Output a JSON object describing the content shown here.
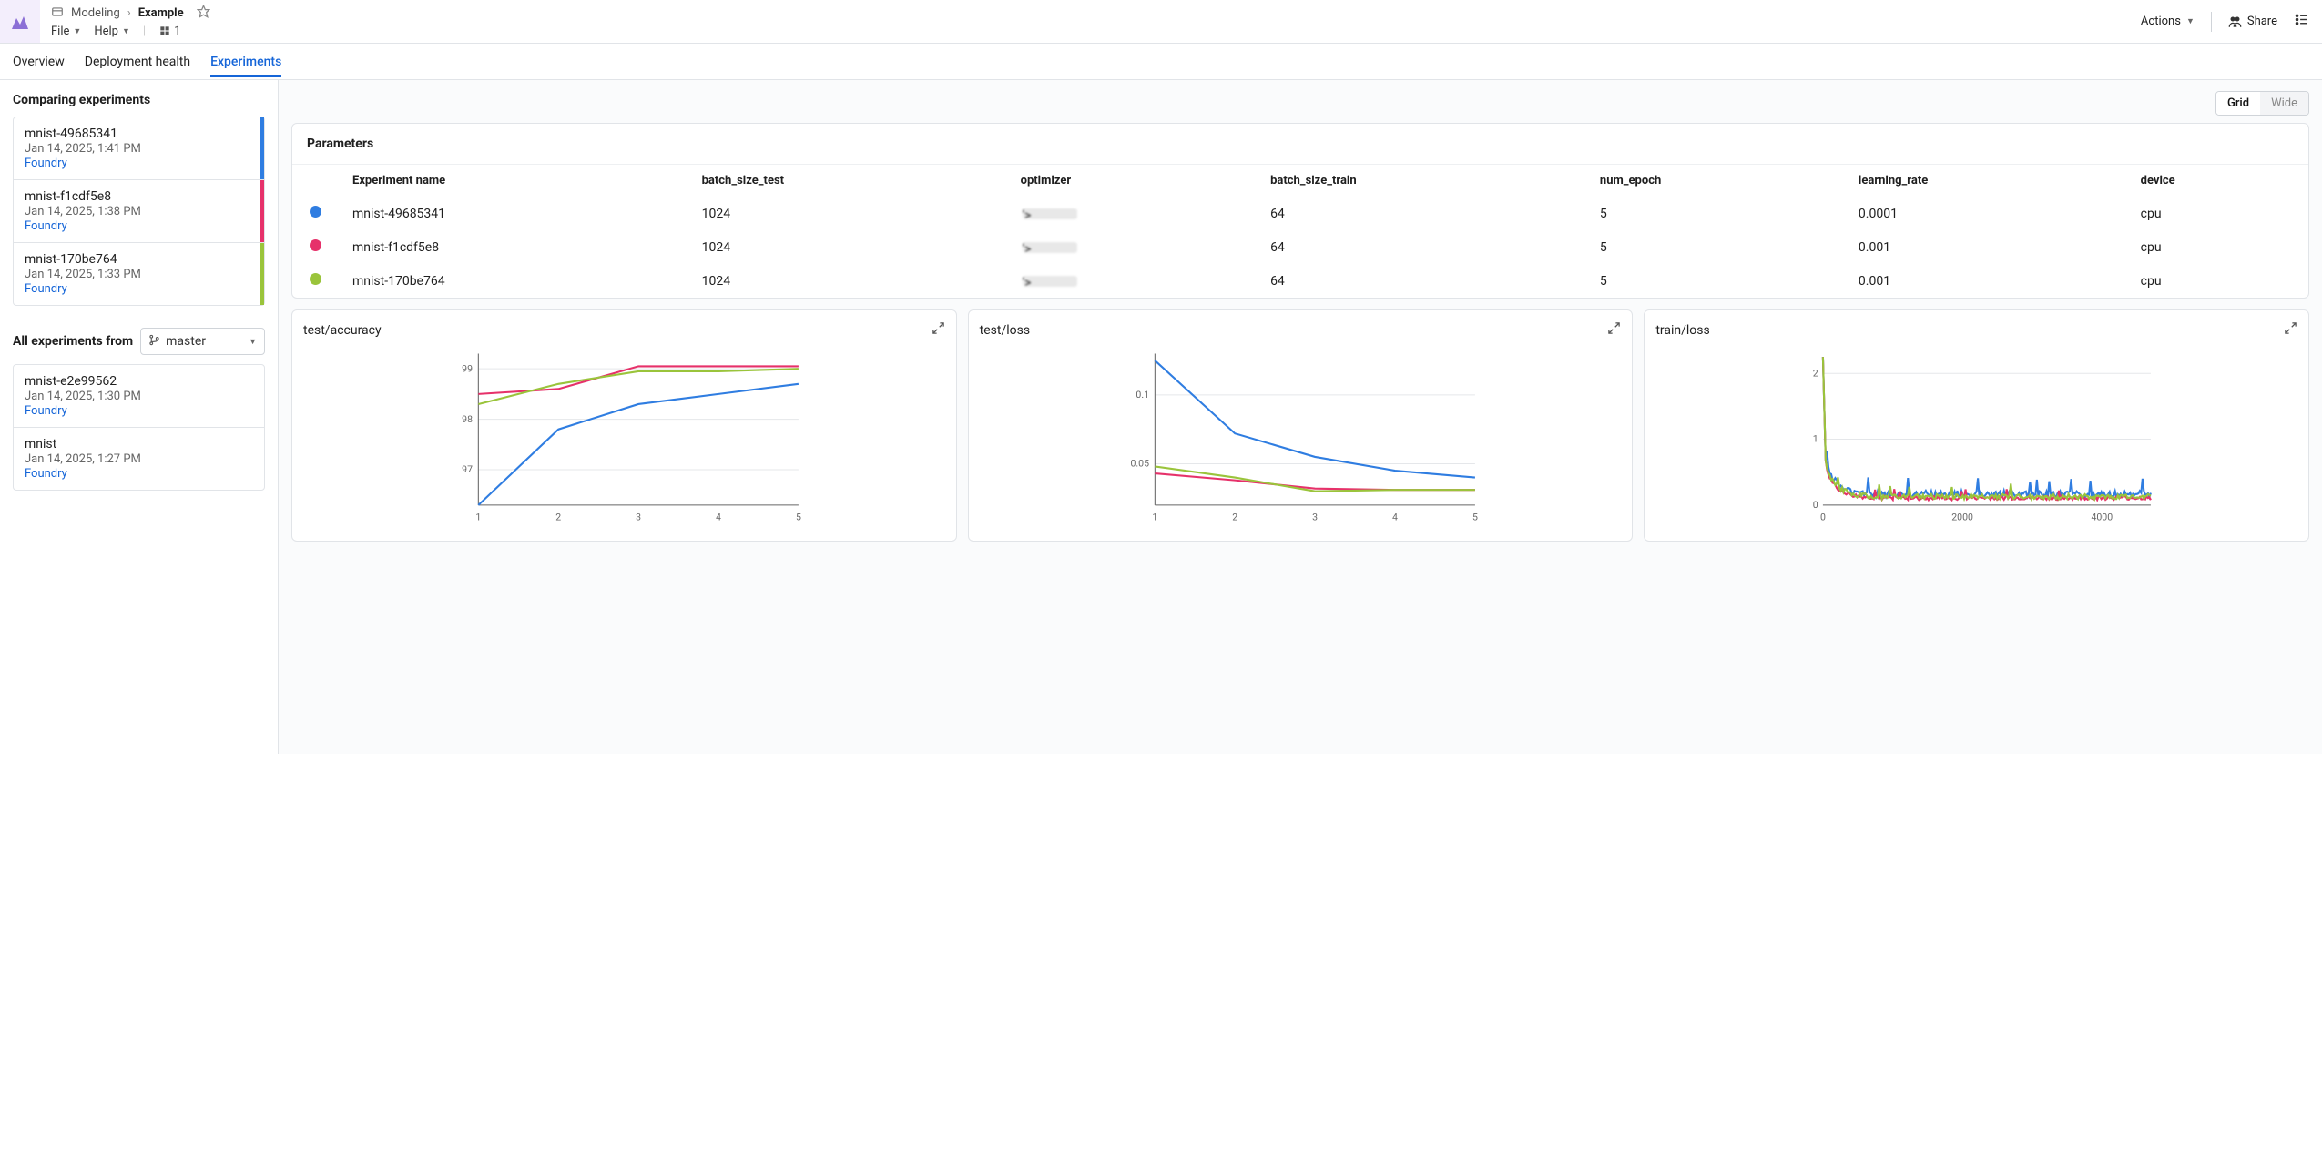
{
  "colors": {
    "blue": "#2f7de1",
    "pink": "#e6316a",
    "green": "#9ac43b",
    "accent": "#1565d8",
    "logo": "#8b6fd6"
  },
  "header": {
    "breadcrumb_parent": "Modeling",
    "breadcrumb_current": "Example",
    "menu_file": "File",
    "menu_help": "Help",
    "user_count": "1",
    "actions_label": "Actions",
    "share_label": "Share"
  },
  "tabs": [
    {
      "id": "overview",
      "label": "Overview",
      "active": false
    },
    {
      "id": "deploy",
      "label": "Deployment health",
      "active": false
    },
    {
      "id": "exp",
      "label": "Experiments",
      "active": true
    }
  ],
  "sidebar": {
    "title": "Comparing experiments",
    "experiments": [
      {
        "name": "mnist-49685341",
        "date": "Jan 14, 2025, 1:41 PM",
        "source": "Foundry",
        "color": "#2f7de1"
      },
      {
        "name": "mnist-f1cdf5e8",
        "date": "Jan 14, 2025, 1:38 PM",
        "source": "Foundry",
        "color": "#e6316a"
      },
      {
        "name": "mnist-170be764",
        "date": "Jan 14, 2025, 1:33 PM",
        "source": "Foundry",
        "color": "#9ac43b"
      }
    ],
    "all_label": "All experiments from",
    "branch": "master",
    "all_experiments": [
      {
        "name": "mnist-e2e99562",
        "date": "Jan 14, 2025, 1:30 PM",
        "source": "Foundry"
      },
      {
        "name": "mnist",
        "date": "Jan 14, 2025, 1:27 PM",
        "source": "Foundry"
      }
    ]
  },
  "view_toggle": {
    "grid": "Grid",
    "wide": "Wide",
    "active": "grid"
  },
  "parameters": {
    "title": "Parameters",
    "columns": [
      "Experiment name",
      "batch_size_test",
      "optimizer",
      "batch_size_train",
      "num_epoch",
      "learning_rate",
      "device"
    ],
    "rows": [
      {
        "color": "#2f7de1",
        "name": "mnist-49685341",
        "batch_size_test": "1024",
        "optimizer_prefix": "<class 'torch.optim.",
        "optimizer_suffix": "'>",
        "batch_size_train": "64",
        "num_epoch": "5",
        "learning_rate": "0.0001",
        "device": "cpu"
      },
      {
        "color": "#e6316a",
        "name": "mnist-f1cdf5e8",
        "batch_size_test": "1024",
        "optimizer_prefix": "<class 'torch.optim.",
        "optimizer_suffix": "'>",
        "batch_size_train": "64",
        "num_epoch": "5",
        "learning_rate": "0.001",
        "device": "cpu"
      },
      {
        "color": "#9ac43b",
        "name": "mnist-170be764",
        "batch_size_test": "1024",
        "optimizer_prefix": "<class 'torch.optim.",
        "optimizer_suffix": "'>",
        "batch_size_train": "64",
        "num_epoch": "5",
        "learning_rate": "0.001",
        "device": "cpu"
      }
    ]
  },
  "charts": {
    "test_accuracy": {
      "title": "test/accuracy",
      "type": "line",
      "x_ticks": [
        1,
        2,
        3,
        4,
        5
      ],
      "y_ticks": [
        97,
        98,
        99
      ],
      "xlim": [
        1,
        5
      ],
      "ylim": [
        96.3,
        99.3
      ],
      "series": [
        {
          "color": "#2f7de1",
          "points": [
            [
              1,
              96.3
            ],
            [
              2,
              97.8
            ],
            [
              3,
              98.3
            ],
            [
              4,
              98.5
            ],
            [
              5,
              98.7
            ]
          ]
        },
        {
          "color": "#e6316a",
          "points": [
            [
              1,
              98.5
            ],
            [
              2,
              98.6
            ],
            [
              3,
              99.05
            ],
            [
              4,
              99.05
            ],
            [
              5,
              99.05
            ]
          ]
        },
        {
          "color": "#9ac43b",
          "points": [
            [
              1,
              98.3
            ],
            [
              2,
              98.7
            ],
            [
              3,
              98.95
            ],
            [
              4,
              98.95
            ],
            [
              5,
              99.0
            ]
          ]
        }
      ]
    },
    "test_loss": {
      "title": "test/loss",
      "type": "line",
      "x_ticks": [
        1,
        2,
        3,
        4,
        5
      ],
      "y_ticks": [
        0.05,
        0.1
      ],
      "xlim": [
        1,
        5
      ],
      "ylim": [
        0.02,
        0.13
      ],
      "series": [
        {
          "color": "#2f7de1",
          "points": [
            [
              1,
              0.125
            ],
            [
              2,
              0.072
            ],
            [
              3,
              0.055
            ],
            [
              4,
              0.045
            ],
            [
              5,
              0.04
            ]
          ]
        },
        {
          "color": "#e6316a",
          "points": [
            [
              1,
              0.043
            ],
            [
              2,
              0.038
            ],
            [
              3,
              0.032
            ],
            [
              4,
              0.031
            ],
            [
              5,
              0.031
            ]
          ]
        },
        {
          "color": "#9ac43b",
          "points": [
            [
              1,
              0.048
            ],
            [
              2,
              0.04
            ],
            [
              3,
              0.03
            ],
            [
              4,
              0.031
            ],
            [
              5,
              0.031
            ]
          ]
        }
      ]
    },
    "train_loss": {
      "title": "train/loss",
      "type": "line-noisy",
      "x_ticks": [
        0,
        2000,
        4000
      ],
      "y_ticks": [
        0,
        1,
        2
      ],
      "xlim": [
        0,
        4700
      ],
      "ylim": [
        0,
        2.3
      ],
      "series": [
        {
          "color": "#2f7de1",
          "base": 0.16,
          "noise": 0.1
        },
        {
          "color": "#e6316a",
          "base": 0.1,
          "noise": 0.06
        },
        {
          "color": "#9ac43b",
          "base": 0.12,
          "noise": 0.08
        }
      ],
      "initial_spike": 2.25
    }
  }
}
